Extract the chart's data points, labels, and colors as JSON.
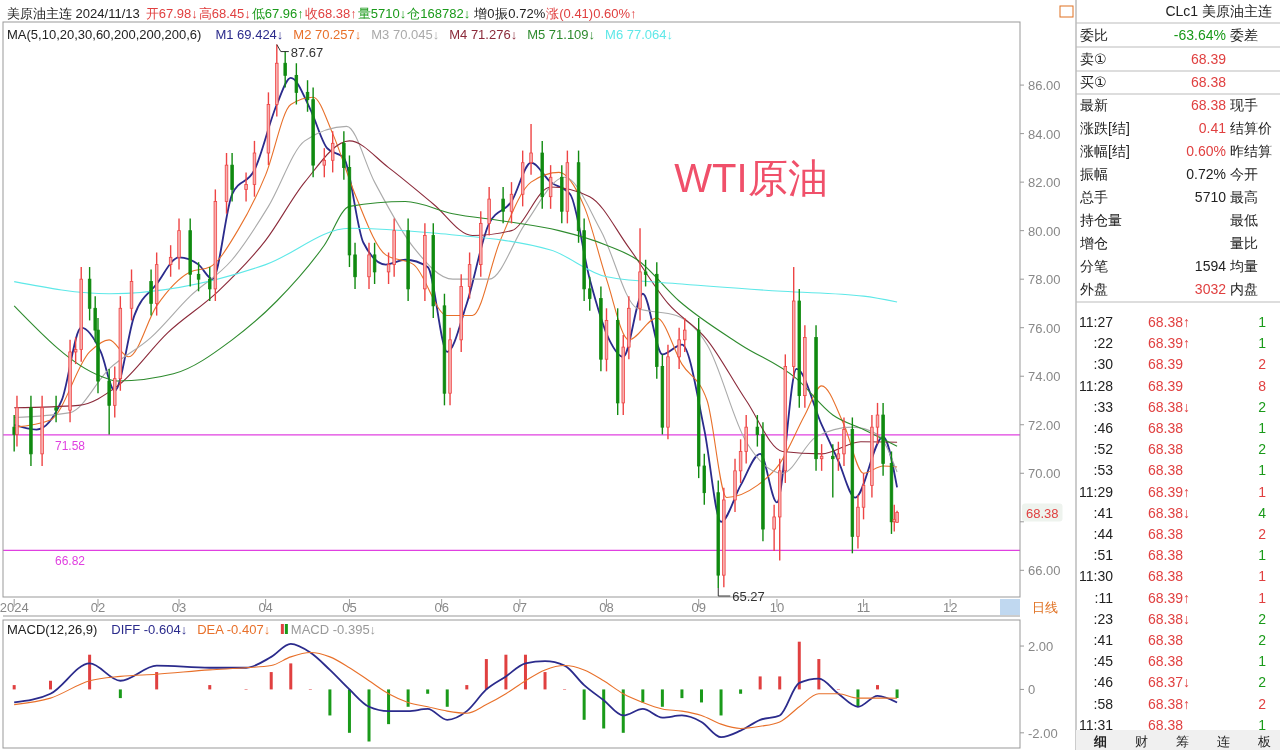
{
  "chart_data": [
    {
      "type": "candlestick",
      "title": "美原油主连 2024/11/13",
      "legend": "top left",
      "annotations": [
        "开67.98↓",
        "高68.45↓",
        "低67.96↑",
        "收68.38↑",
        "量5710↓",
        "仓168782↓",
        "增0",
        "振0.72%",
        "涨(0.41)0.60%↑",
        "MA(5,10,20,30,60,200,200,200,6)",
        "WTI原油",
        "日线",
        {
          "text": "87.67",
          "x": "2024-04-05",
          "y": 87.67
        },
        {
          "text": "65.27",
          "x": "2024-09-10",
          "y": 65.27
        },
        "68.38"
      ],
      "x": [
        "2024-01-02",
        "2024-01-03",
        "2024-01-08",
        "2024-01-12",
        "2024-01-17",
        "2024-01-22",
        "2024-01-24",
        "2024-01-26",
        "2024-01-29",
        "2024-01-31",
        "2024-02-01",
        "2024-02-05",
        "2024-02-07",
        "2024-02-09",
        "2024-02-13",
        "2024-02-20",
        "2024-02-22",
        "2024-02-27",
        "2024-03-01",
        "2024-03-05",
        "2024-03-08",
        "2024-03-12",
        "2024-03-14",
        "2024-03-18",
        "2024-03-20",
        "2024-03-25",
        "2024-03-28",
        "2024-04-02",
        "2024-04-05",
        "2024-04-08",
        "2024-04-12",
        "2024-04-16",
        "2024-04-18",
        "2024-04-22",
        "2024-04-25",
        "2024-04-29",
        "2024-05-01",
        "2024-05-03",
        "2024-05-08",
        "2024-05-10",
        "2024-05-15",
        "2024-05-17",
        "2024-05-22",
        "2024-05-28",
        "2024-05-31",
        "2024-06-04",
        "2024-06-06",
        "2024-06-10",
        "2024-06-13",
        "2024-06-17",
        "2024-06-20",
        "2024-06-25",
        "2024-06-28",
        "2024-07-02",
        "2024-07-05",
        "2024-07-09",
        "2024-07-12",
        "2024-07-16",
        "2024-07-18",
        "2024-07-22",
        "2024-07-24",
        "2024-07-26",
        "2024-07-30",
        "2024-08-01",
        "2024-08-05",
        "2024-08-07",
        "2024-08-09",
        "2024-08-13",
        "2024-08-15",
        "2024-08-19",
        "2024-08-21",
        "2024-08-23",
        "2024-08-27",
        "2024-08-29",
        "2024-09-03",
        "2024-09-05",
        "2024-09-10",
        "2024-09-12",
        "2024-09-16",
        "2024-09-18",
        "2024-09-20",
        "2024-09-24",
        "2024-09-26",
        "2024-09-30",
        "2024-10-02",
        "2024-10-04",
        "2024-10-07",
        "2024-10-09",
        "2024-10-11",
        "2024-10-15",
        "2024-10-17",
        "2024-10-21",
        "2024-10-23",
        "2024-10-25",
        "2024-10-28",
        "2024-10-30",
        "2024-11-01",
        "2024-11-04",
        "2024-11-06",
        "2024-11-08",
        "2024-11-11",
        "2024-11-12",
        "2024-11-13"
      ],
      "ohlc": [
        [
          71.9,
          72.4,
          70.9,
          71.6
        ],
        [
          71.6,
          73.2,
          71.1,
          72.7
        ],
        [
          72.7,
          73.2,
          70.3,
          70.8
        ],
        [
          70.8,
          73.2,
          70.3,
          72.7
        ],
        [
          72.7,
          73.2,
          72.1,
          72.6
        ],
        [
          72.6,
          75.5,
          72.1,
          75.0
        ],
        [
          75.0,
          75.6,
          74.5,
          75.1
        ],
        [
          75.1,
          78.5,
          74.6,
          78.0
        ],
        [
          78.0,
          78.5,
          76.3,
          76.8
        ],
        [
          76.8,
          77.3,
          75.4,
          75.9
        ],
        [
          75.9,
          76.4,
          73.3,
          73.8
        ],
        [
          73.8,
          74.3,
          71.6,
          72.8
        ],
        [
          72.8,
          74.4,
          72.3,
          73.9
        ],
        [
          73.9,
          77.3,
          73.4,
          76.8
        ],
        [
          76.8,
          78.4,
          76.3,
          77.9
        ],
        [
          77.9,
          78.4,
          76.5,
          77.0
        ],
        [
          77.0,
          79.1,
          76.5,
          78.6
        ],
        [
          78.6,
          79.4,
          78.1,
          78.9
        ],
        [
          78.9,
          80.5,
          78.4,
          80.0
        ],
        [
          80.0,
          80.5,
          77.7,
          78.2
        ],
        [
          78.2,
          78.7,
          77.5,
          78.0
        ],
        [
          78.0,
          78.5,
          77.1,
          77.6
        ],
        [
          77.6,
          81.7,
          77.1,
          81.2
        ],
        [
          81.2,
          83.2,
          80.7,
          82.7
        ],
        [
          82.7,
          83.2,
          81.2,
          81.7
        ],
        [
          81.7,
          82.4,
          81.2,
          81.9
        ],
        [
          81.9,
          83.7,
          81.4,
          83.2
        ],
        [
          83.2,
          85.7,
          82.7,
          85.2
        ],
        [
          85.2,
          87.67,
          84.7,
          86.9
        ],
        [
          86.9,
          87.4,
          85.9,
          86.4
        ],
        [
          86.4,
          86.9,
          85.2,
          85.7
        ],
        [
          85.7,
          86.2,
          84.9,
          85.4
        ],
        [
          85.4,
          85.9,
          82.2,
          82.7
        ],
        [
          82.7,
          83.4,
          82.2,
          82.9
        ],
        [
          82.9,
          84.1,
          82.4,
          83.6
        ],
        [
          83.6,
          84.1,
          82.1,
          82.6
        ],
        [
          82.6,
          83.1,
          78.5,
          79.0
        ],
        [
          79.0,
          79.5,
          77.6,
          78.1
        ],
        [
          78.1,
          79.5,
          77.6,
          79.0
        ],
        [
          79.0,
          79.5,
          77.8,
          78.3
        ],
        [
          78.3,
          79.1,
          77.8,
          78.6
        ],
        [
          78.6,
          80.5,
          78.1,
          80.0
        ],
        [
          80.0,
          80.5,
          77.1,
          77.6
        ],
        [
          77.6,
          80.3,
          77.1,
          79.8
        ],
        [
          79.8,
          80.3,
          76.4,
          76.9
        ],
        [
          76.9,
          77.4,
          72.8,
          73.3
        ],
        [
          73.3,
          76.0,
          72.8,
          75.5
        ],
        [
          75.5,
          78.2,
          75.0,
          77.7
        ],
        [
          77.7,
          79.1,
          77.2,
          78.6
        ],
        [
          78.6,
          80.8,
          78.1,
          80.3
        ],
        [
          80.3,
          81.8,
          79.8,
          81.3
        ],
        [
          81.3,
          81.8,
          80.3,
          80.8
        ],
        [
          80.8,
          82.0,
          80.3,
          81.5
        ],
        [
          81.5,
          83.3,
          81.0,
          82.8
        ],
        [
          82.8,
          84.4,
          82.3,
          83.2
        ],
        [
          83.2,
          83.7,
          80.9,
          81.4
        ],
        [
          81.4,
          82.7,
          80.9,
          82.2
        ],
        [
          82.2,
          82.7,
          80.3,
          80.8
        ],
        [
          80.8,
          83.3,
          80.3,
          82.8
        ],
        [
          82.8,
          83.3,
          79.5,
          80.0
        ],
        [
          80.0,
          80.5,
          77.1,
          77.6
        ],
        [
          77.6,
          78.1,
          76.7,
          77.2
        ],
        [
          77.2,
          77.7,
          74.2,
          74.7
        ],
        [
          74.7,
          76.8,
          74.2,
          76.3
        ],
        [
          76.3,
          76.8,
          72.4,
          72.9
        ],
        [
          72.9,
          75.7,
          72.4,
          75.2
        ],
        [
          75.2,
          77.3,
          74.7,
          76.8
        ],
        [
          76.8,
          80.1,
          76.3,
          78.3
        ],
        [
          78.3,
          78.8,
          77.7,
          78.2
        ],
        [
          78.2,
          78.7,
          73.9,
          74.4
        ],
        [
          74.4,
          74.9,
          71.6,
          71.9
        ],
        [
          71.9,
          75.3,
          71.4,
          74.8
        ],
        [
          74.8,
          76.0,
          74.3,
          75.5
        ],
        [
          75.5,
          76.4,
          75.0,
          75.9
        ],
        [
          75.9,
          76.4,
          69.8,
          70.3
        ],
        [
          70.3,
          70.8,
          68.7,
          69.2
        ],
        [
          69.2,
          69.7,
          65.27,
          65.8
        ],
        [
          65.8,
          69.4,
          65.3,
          68.9
        ],
        [
          68.9,
          70.6,
          68.4,
          70.1
        ],
        [
          70.1,
          71.4,
          69.6,
          70.9
        ],
        [
          70.9,
          72.4,
          70.4,
          71.9
        ],
        [
          71.9,
          72.4,
          71.1,
          71.6
        ],
        [
          71.6,
          72.1,
          67.2,
          67.7
        ],
        [
          67.7,
          68.7,
          66.8,
          68.2
        ],
        [
          68.2,
          70.6,
          66.4,
          70.1
        ],
        [
          70.1,
          74.9,
          69.6,
          74.4
        ],
        [
          74.4,
          78.5,
          73.9,
          77.1
        ],
        [
          77.1,
          77.6,
          72.7,
          73.2
        ],
        [
          73.2,
          76.1,
          72.7,
          75.6
        ],
        [
          75.6,
          76.1,
          70.1,
          70.6
        ],
        [
          70.6,
          71.2,
          70.1,
          70.7
        ],
        [
          70.7,
          71.2,
          69.0,
          70.6
        ],
        [
          70.6,
          71.3,
          70.1,
          70.8
        ],
        [
          70.8,
          72.3,
          70.3,
          71.8
        ],
        [
          71.8,
          72.3,
          66.7,
          67.4
        ],
        [
          67.4,
          69.1,
          66.9,
          68.6
        ],
        [
          68.6,
          70.0,
          68.1,
          69.5
        ],
        [
          69.5,
          72.4,
          69.0,
          71.9
        ],
        [
          71.9,
          72.9,
          71.2,
          72.4
        ],
        [
          72.4,
          72.9,
          69.9,
          70.4
        ],
        [
          70.4,
          70.9,
          67.5,
          68.0
        ],
        [
          68.0,
          68.7,
          67.6,
          68.1
        ],
        [
          67.98,
          68.45,
          67.96,
          68.38
        ]
      ],
      "series": [
        {
          "type": "line",
          "name": "M1 69.424↓",
          "color": "#2b2b8c",
          "x": [
            "2024-01-02",
            "2024-01-10",
            "2024-01-19",
            "2024-01-26",
            "2024-02-02",
            "2024-02-07",
            "2024-02-14",
            "2024-02-22",
            "2024-03-01",
            "2024-03-08",
            "2024-03-13",
            "2024-03-20",
            "2024-03-28",
            "2024-04-05",
            "2024-04-10",
            "2024-04-17",
            "2024-04-23",
            "2024-04-29",
            "2024-05-06",
            "2024-05-14",
            "2024-05-21",
            "2024-05-29",
            "2024-06-05",
            "2024-06-12",
            "2024-06-20",
            "2024-06-28",
            "2024-07-05",
            "2024-07-12",
            "2024-07-19",
            "2024-07-26",
            "2024-08-02",
            "2024-08-07",
            "2024-08-14",
            "2024-08-21",
            "2024-08-28",
            "2024-09-05",
            "2024-09-11",
            "2024-09-18",
            "2024-09-25",
            "2024-10-01",
            "2024-10-08",
            "2024-10-11",
            "2024-10-17",
            "2024-10-23",
            "2024-10-29",
            "2024-11-05",
            "2024-11-08",
            "2024-11-13"
          ],
          "values": [
            72.0,
            71.8,
            73.0,
            76.0,
            75.0,
            73.4,
            76.5,
            77.8,
            78.9,
            78.6,
            78.0,
            81.5,
            82.5,
            85.2,
            86.3,
            85.0,
            83.4,
            83.0,
            79.5,
            78.6,
            78.8,
            78.5,
            75.0,
            77.0,
            80.3,
            81.2,
            82.8,
            82.0,
            81.5,
            78.0,
            75.5,
            74.8,
            77.4,
            74.9,
            75.3,
            71.8,
            68.0,
            69.5,
            70.8,
            68.8,
            74.3,
            null,
            72.0,
            70.5,
            69.0,
            null,
            71.5,
            69.42
          ]
        },
        {
          "type": "line",
          "name": "M2 70.257↓",
          "color": "#e8702a",
          "x": [
            "2024-01-02",
            "2024-01-15",
            "2024-01-29",
            "2024-02-05",
            "2024-02-12",
            "2024-02-22",
            "2024-03-05",
            "2024-03-12",
            "2024-03-22",
            "2024-04-01",
            "2024-04-10",
            "2024-04-18",
            "2024-04-25",
            "2024-05-03",
            "2024-05-14",
            "2024-05-24",
            "2024-06-05",
            "2024-06-14",
            "2024-06-24",
            "2024-07-05",
            "2024-07-15",
            "2024-07-24",
            "2024-08-01",
            "2024-08-09",
            "2024-08-19",
            "2024-08-28",
            "2024-09-06",
            "2024-09-13",
            "2024-09-24",
            "2024-10-02",
            "2024-10-11",
            "2024-10-17",
            "2024-10-25",
            "2024-11-01",
            "2024-11-08",
            "2024-11-13"
          ],
          "values": [
            71.9,
            72.2,
            75.0,
            75.5,
            74.8,
            76.9,
            78.3,
            78.5,
            80.0,
            82.3,
            85.2,
            85.5,
            84.0,
            81.5,
            79.0,
            78.6,
            76.5,
            76.5,
            79.6,
            82.0,
            82.4,
            81.0,
            78.0,
            75.5,
            76.4,
            74.5,
            73.0,
            69.0,
            69.5,
            70.4,
            72.4,
            73.6,
            72.0,
            70.0,
            70.3,
            70.26
          ]
        },
        {
          "type": "line",
          "name": "M3 70.045↓",
          "color": "#aaaaaa",
          "x": [
            "2024-01-02",
            "2024-01-22",
            "2024-02-05",
            "2024-02-20",
            "2024-03-05",
            "2024-03-20",
            "2024-04-02",
            "2024-04-15",
            "2024-04-30",
            "2024-05-10",
            "2024-05-24",
            "2024-06-07",
            "2024-06-20",
            "2024-07-03",
            "2024-07-17",
            "2024-07-30",
            "2024-08-12",
            "2024-08-26",
            "2024-09-06",
            "2024-09-20",
            "2024-10-03",
            "2024-10-15",
            "2024-10-28",
            "2024-11-06",
            "2024-11-13"
          ],
          "values": [
            72.3,
            72.5,
            74.3,
            75.6,
            77.3,
            78.8,
            81.0,
            83.7,
            84.3,
            82.0,
            79.3,
            78.0,
            78.0,
            80.3,
            82.2,
            80.0,
            76.8,
            76.5,
            75.3,
            71.3,
            70.0,
            71.5,
            71.9,
            71.6,
            70.05
          ]
        },
        {
          "type": "line",
          "name": "M4 71.276↓",
          "color": "#8b2a3a",
          "x": [
            "2024-01-02",
            "2024-01-25",
            "2024-02-08",
            "2024-02-26",
            "2024-03-15",
            "2024-04-01",
            "2024-04-15",
            "2024-05-01",
            "2024-05-15",
            "2024-05-31",
            "2024-06-14",
            "2024-06-28",
            "2024-07-12",
            "2024-07-26",
            "2024-08-09",
            "2024-08-23",
            "2024-09-06",
            "2024-09-20",
            "2024-10-03",
            "2024-10-17",
            "2024-10-31",
            "2024-11-13"
          ],
          "values": [
            72.7,
            72.8,
            73.6,
            75.8,
            77.5,
            79.6,
            82.0,
            83.7,
            82.6,
            81.1,
            79.8,
            80.0,
            81.8,
            81.4,
            79.3,
            77.0,
            75.5,
            73.0,
            70.9,
            70.8,
            71.3,
            71.28
          ]
        },
        {
          "type": "line",
          "name": "M5 71.109↓",
          "color": "#2e8b2e",
          "x": [
            "2024-01-02",
            "2024-02-02",
            "2024-02-08",
            "2024-02-28",
            "2024-03-20",
            "2024-04-05",
            "2024-04-22",
            "2024-05-01",
            "2024-05-21",
            "2024-06-07",
            "2024-06-25",
            "2024-07-15",
            "2024-08-01",
            "2024-08-12",
            "2024-08-27",
            "2024-09-18",
            "2024-10-08",
            "2024-10-21",
            "2024-11-01",
            "2024-11-13"
          ],
          "values": [
            76.9,
            74.0,
            73.8,
            74.1,
            75.5,
            77.1,
            79.4,
            81.0,
            81.2,
            80.7,
            80.4,
            80.0,
            79.4,
            78.8,
            77.1,
            75.3,
            73.9,
            72.4,
            71.8,
            71.11
          ]
        },
        {
          "type": "line",
          "name": "M6 77.064↓",
          "color": "#5ee8e8",
          "x": [
            "2024-01-02",
            "2024-02-05",
            "2024-04-01",
            "2024-05-01",
            "2024-05-31",
            "2024-07-12",
            "2024-08-01",
            "2024-08-28",
            "2024-10-03",
            "2024-11-01",
            "2024-11-13"
          ],
          "values": [
            77.9,
            77.4,
            78.6,
            80.1,
            79.9,
            79.2,
            78.1,
            77.8,
            77.5,
            77.3,
            77.06
          ]
        }
      ],
      "ref_lines": [
        {
          "axis": "y",
          "value": 71.58,
          "label": "71.58",
          "color": "#e040e0"
        },
        {
          "axis": "y",
          "value": 66.82,
          "label": "66.82",
          "color": "#e040e0"
        }
      ],
      "xlim": [
        "2023-12-29",
        "2024-12-27"
      ],
      "xticks": [
        {
          "value": "2024-01-02",
          "label": "2024"
        },
        {
          "value": "2024-02-01",
          "label": "02"
        },
        {
          "value": "2024-03-01",
          "label": "03"
        },
        {
          "value": "2024-04-01",
          "label": "04"
        },
        {
          "value": "2024-05-01",
          "label": "05"
        },
        {
          "value": "2024-06-03",
          "label": "06"
        },
        {
          "value": "2024-07-01",
          "label": "07"
        },
        {
          "value": "2024-08-01",
          "label": "08"
        },
        {
          "value": "2024-09-03",
          "label": "09"
        },
        {
          "value": "2024-10-01",
          "label": "10"
        },
        {
          "value": "2024-11-01",
          "label": "11"
        },
        {
          "value": "2024-12-02",
          "label": "12"
        }
      ],
      "ylim": [
        64.9,
        88.6
      ],
      "yticks": [
        {
          "value": 66,
          "label": "66.00"
        },
        {
          "value": 68,
          "label": null
        },
        {
          "value": 70,
          "label": "70.00"
        },
        {
          "value": 72,
          "label": "72.00"
        },
        {
          "value": 74,
          "label": "74.00"
        },
        {
          "value": 76,
          "label": "76.00"
        },
        {
          "value": 78,
          "label": "78.00"
        },
        {
          "value": 80,
          "label": "80.00"
        },
        {
          "value": 82,
          "label": "82.00"
        },
        {
          "value": 84,
          "label": "84.00"
        },
        {
          "value": 86,
          "label": "86.00"
        }
      ]
    },
    {
      "type": "line",
      "legend": "top left",
      "tick_labels": "y",
      "annotations": [
        "MACD(12,26,9)"
      ],
      "x": [
        "2024-01-02",
        "2024-01-15",
        "2024-01-29",
        "2024-02-09",
        "2024-02-22",
        "2024-03-12",
        "2024-03-25",
        "2024-04-03",
        "2024-04-10",
        "2024-04-17",
        "2024-04-24",
        "2024-05-01",
        "2024-05-08",
        "2024-05-15",
        "2024-05-22",
        "2024-05-29",
        "2024-06-05",
        "2024-06-12",
        "2024-06-19",
        "2024-06-26",
        "2024-07-03",
        "2024-07-10",
        "2024-07-17",
        "2024-07-24",
        "2024-07-31",
        "2024-08-07",
        "2024-08-14",
        "2024-08-21",
        "2024-08-28",
        "2024-09-04",
        "2024-09-11",
        "2024-09-18",
        "2024-09-25",
        "2024-10-02",
        "2024-10-09",
        "2024-10-16",
        "2024-10-23",
        "2024-10-30",
        "2024-11-06",
        "2024-11-13"
      ],
      "series": [
        {
          "type": "line",
          "name": "DIFF -0.604↓",
          "color": "#2b2b8c",
          "values": [
            -0.6,
            -0.2,
            1.2,
            0.4,
            1.1,
            1.0,
            1.0,
            1.5,
            2.1,
            1.7,
            0.9,
            0.0,
            -0.8,
            -1.0,
            -1.0,
            -0.9,
            -1.4,
            -1.0,
            0.0,
            0.6,
            1.2,
            1.3,
            1.1,
            0.2,
            -0.5,
            -1.2,
            -0.9,
            -1.3,
            -1.2,
            -1.5,
            -2.2,
            -1.9,
            -1.4,
            -1.2,
            0.3,
            0.5,
            -0.2,
            -0.8,
            -0.3,
            -0.604
          ]
        },
        {
          "type": "line",
          "name": "DEA -0.407↓",
          "color": "#e8702a",
          "values": [
            -0.7,
            -0.4,
            0.4,
            0.6,
            0.7,
            0.9,
            1.0,
            1.1,
            1.5,
            1.7,
            1.5,
            1.0,
            0.4,
            -0.2,
            -0.6,
            -0.8,
            -1.0,
            -1.1,
            -0.7,
            -0.2,
            0.4,
            0.9,
            1.1,
            0.9,
            0.4,
            -0.2,
            -0.6,
            -0.9,
            -1.0,
            -1.2,
            -1.6,
            -1.8,
            -1.7,
            -1.5,
            -0.8,
            -0.2,
            -0.2,
            -0.4,
            -0.4,
            -0.407
          ]
        },
        {
          "type": "bar",
          "name": "MACD -0.395↓",
          "color": "#999999",
          "values": [
            0.2,
            0.4,
            1.6,
            -0.4,
            0.8,
            0.2,
            0,
            0.8,
            1.2,
            0,
            -1.2,
            -2.0,
            -2.4,
            -1.6,
            -0.8,
            -0.2,
            -0.8,
            0.2,
            1.4,
            1.6,
            1.6,
            0.8,
            0,
            -1.4,
            -1.8,
            -2.0,
            -0.6,
            -0.8,
            -0.4,
            -0.6,
            -1.2,
            -0.2,
            0.6,
            0.6,
            2.2,
            1.4,
            0,
            -0.8,
            0.2,
            -0.395
          ],
          "colors": [
            "#e04040",
            "#e04040",
            "#e04040",
            "#1a9a1a",
            "#e04040",
            "#e04040",
            "#e04040",
            "#e04040",
            "#e04040",
            "#e04040",
            "#1a9a1a",
            "#1a9a1a",
            "#1a9a1a",
            "#1a9a1a",
            "#1a9a1a",
            "#1a9a1a",
            "#1a9a1a",
            "#e04040",
            "#e04040",
            "#e04040",
            "#e04040",
            "#e04040",
            "#e04040",
            "#1a9a1a",
            "#1a9a1a",
            "#1a9a1a",
            "#1a9a1a",
            "#1a9a1a",
            "#1a9a1a",
            "#1a9a1a",
            "#1a9a1a",
            "#1a9a1a",
            "#e04040",
            "#e04040",
            "#e04040",
            "#e04040",
            "#e04040",
            "#1a9a1a",
            "#e04040",
            "#1a9a1a"
          ]
        }
      ],
      "xlim": [
        "2023-12-29",
        "2024-12-27"
      ],
      "ylim": [
        -2.7,
        3.2
      ],
      "yticks": [
        {
          "value": -2,
          "label": "-2.00"
        },
        {
          "value": 0,
          "label": "0"
        },
        {
          "value": 2,
          "label": "2.00"
        }
      ]
    },
    {
      "type": "other",
      "title": "CLc1 美原油主连",
      "cell_labels": [
        [
          "委比",
          "-63.64%",
          "委差"
        ],
        [
          "卖①",
          "68.39",
          null
        ],
        [
          "买①",
          "68.38",
          null
        ],
        [
          "最新",
          "68.38",
          "现手"
        ],
        [
          "涨跌[结]",
          "0.41",
          "结算价"
        ],
        [
          "涨幅[结]",
          "0.60%",
          "昨结算"
        ],
        [
          "振幅",
          "0.72%",
          "今开"
        ],
        [
          "总手",
          "5710",
          "最高"
        ],
        [
          "持仓量",
          null,
          "最低"
        ],
        [
          "增仓",
          null,
          "量比"
        ],
        [
          "分笔",
          "1594",
          "均量"
        ],
        [
          "外盘",
          "3032",
          "内盘"
        ]
      ],
      "colors": [
        "#1a9a1a",
        "#e04040",
        "#e04040",
        "#e04040",
        "#e04040",
        "#e04040",
        "#222222",
        "#222222",
        "#222222",
        "#e04040"
      ]
    },
    {
      "type": "other",
      "cell_labels": [
        [
          "11:27",
          "68.38↑",
          "1"
        ],
        [
          ":22",
          "68.39↑",
          "1"
        ],
        [
          ":30",
          "68.39",
          "2"
        ],
        [
          "11:28",
          "68.39",
          "8"
        ],
        [
          ":33",
          "68.38↓",
          "2"
        ],
        [
          ":46",
          "68.38",
          "1"
        ],
        [
          ":52",
          "68.38",
          "2"
        ],
        [
          ":53",
          "68.38",
          "1"
        ],
        [
          "11:29",
          "68.39↑",
          "1"
        ],
        [
          ":41",
          "68.38↓",
          "4"
        ],
        [
          ":44",
          "68.38",
          "2"
        ],
        [
          ":51",
          "68.38",
          "1"
        ],
        [
          "11:30",
          "68.38",
          "1"
        ],
        [
          ":11",
          "68.39↑",
          "1"
        ],
        [
          ":23",
          "68.38↓",
          "2"
        ],
        [
          ":41",
          "68.38",
          "2"
        ],
        [
          ":45",
          "68.38",
          "1"
        ],
        [
          ":46",
          "68.37↓",
          "2"
        ],
        [
          ":58",
          "68.38↑",
          "2"
        ],
        [
          "11:31",
          "68.38",
          "1"
        ]
      ],
      "colors": [
        "#1a9a1a",
        "#1a9a1a",
        "#e04040",
        "#e04040",
        "#1a9a1a",
        "#1a9a1a",
        "#1a9a1a",
        "#1a9a1a",
        "#e04040",
        "#1a9a1a",
        "#e04040",
        "#1a9a1a",
        "#e04040",
        "#e04040",
        "#1a9a1a",
        "#1a9a1a",
        "#1a9a1a",
        "#1a9a1a",
        "#e04040",
        "#1a9a1a"
      ]
    },
    {
      "type": "other",
      "annotations": [
        "细",
        "财",
        "筹",
        "连",
        "板"
      ]
    }
  ]
}
